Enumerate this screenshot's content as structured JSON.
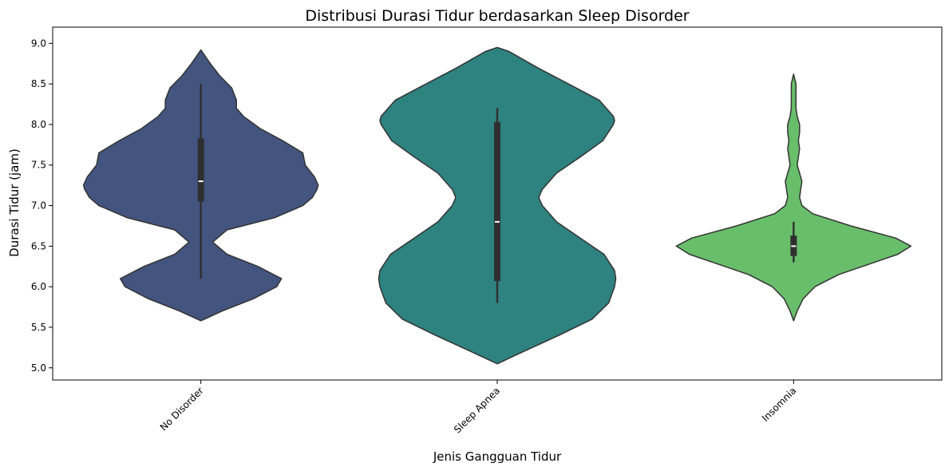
{
  "chart_data": {
    "type": "violin",
    "title": "Distribusi Durasi Tidur berdasarkan Sleep Disorder",
    "xlabel": "Jenis Gangguan Tidur",
    "ylabel": "Durasi Tidur (jam)",
    "ylim": [
      4.85,
      9.2
    ],
    "yticks": [
      5.0,
      5.5,
      6.0,
      6.5,
      7.0,
      7.5,
      8.0,
      8.5,
      9.0
    ],
    "ytick_labels": [
      "5.0",
      "5.5",
      "6.0",
      "6.5",
      "7.0",
      "7.5",
      "8.0",
      "8.5",
      "9.0"
    ],
    "categories": [
      "No Disorder",
      "Sleep Apnea",
      "Insomnia"
    ],
    "grid": false,
    "legend": "none",
    "series": [
      {
        "category": "No Disorder",
        "color": "#43547f",
        "min": 6.1,
        "q1": 7.05,
        "median": 7.3,
        "q3": 7.83,
        "max": 8.5,
        "kde_y": [
          5.58,
          5.7,
          5.85,
          6.0,
          6.1,
          6.25,
          6.4,
          6.55,
          6.7,
          6.85,
          7.0,
          7.1,
          7.2,
          7.25,
          7.35,
          7.5,
          7.65,
          7.8,
          7.95,
          8.1,
          8.2,
          8.3,
          8.45,
          8.6,
          8.75,
          8.92
        ],
        "kde_w": [
          0.0,
          0.18,
          0.44,
          0.64,
          0.68,
          0.48,
          0.22,
          0.1,
          0.22,
          0.62,
          0.86,
          0.94,
          0.98,
          0.99,
          0.96,
          0.88,
          0.86,
          0.69,
          0.5,
          0.36,
          0.3,
          0.3,
          0.26,
          0.16,
          0.08,
          0.0
        ]
      },
      {
        "category": "Sleep Apnea",
        "color": "#2e8280",
        "min": 5.8,
        "q1": 6.07,
        "median": 6.8,
        "q3": 8.03,
        "max": 8.2,
        "kde_y": [
          5.05,
          5.2,
          5.4,
          5.6,
          5.8,
          6.0,
          6.1,
          6.2,
          6.4,
          6.6,
          6.8,
          7.0,
          7.1,
          7.2,
          7.4,
          7.6,
          7.8,
          8.0,
          8.05,
          8.1,
          8.3,
          8.5,
          8.7,
          8.9,
          8.95
        ],
        "kde_w": [
          0.0,
          0.22,
          0.52,
          0.8,
          0.94,
          0.99,
          1.0,
          0.99,
          0.9,
          0.7,
          0.5,
          0.38,
          0.35,
          0.38,
          0.5,
          0.7,
          0.89,
          0.98,
          0.99,
          0.98,
          0.86,
          0.6,
          0.34,
          0.1,
          0.0
        ]
      },
      {
        "category": "Insomnia",
        "color": "#68be6a",
        "min": 6.3,
        "q1": 6.38,
        "median": 6.5,
        "q3": 6.63,
        "max": 6.8,
        "kde_y": [
          5.58,
          5.7,
          5.85,
          6.0,
          6.15,
          6.3,
          6.4,
          6.5,
          6.6,
          6.75,
          6.9,
          7.0,
          7.1,
          7.2,
          7.3,
          7.4,
          7.5,
          7.6,
          7.7,
          7.8,
          7.9,
          8.0,
          8.1,
          8.2,
          8.3,
          8.4,
          8.5,
          8.62
        ],
        "kde_w": [
          0.0,
          0.03,
          0.08,
          0.18,
          0.38,
          0.68,
          0.88,
          0.99,
          0.86,
          0.48,
          0.16,
          0.07,
          0.05,
          0.06,
          0.07,
          0.05,
          0.03,
          0.04,
          0.05,
          0.04,
          0.05,
          0.05,
          0.03,
          0.02,
          0.02,
          0.02,
          0.02,
          0.0
        ]
      }
    ]
  }
}
